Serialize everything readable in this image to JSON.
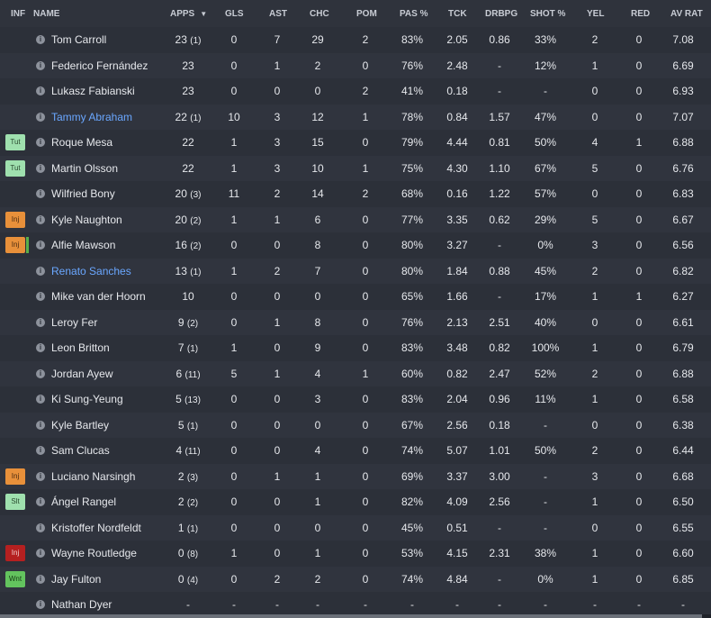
{
  "headers": {
    "inf": "INF",
    "name": "NAME",
    "apps": "APPS",
    "gls": "GLS",
    "ast": "AST",
    "chc": "CHC",
    "pom": "POM",
    "pas": "PAS %",
    "tck": "TCK",
    "drb": "DRBPG",
    "shot": "SHOT %",
    "yel": "YEL",
    "red": "RED",
    "av": "AV RAT"
  },
  "sort_arrow": "▼",
  "info_glyph": "i",
  "colors": {
    "loan_name": "#6aa7ff",
    "tut": "#9fe0ae",
    "inj": "#e8903a",
    "inj_severe": "#b52020",
    "wnt": "#63c35e"
  },
  "players": [
    {
      "inf": "",
      "inf_type": "",
      "name": "Tom Carroll",
      "loan": false,
      "apps": "23",
      "apps_sub": "(1)",
      "gls": "0",
      "ast": "7",
      "chc": "29",
      "pom": "2",
      "pas": "83%",
      "tck": "2.05",
      "drb": "0.86",
      "shot": "33%",
      "yel": "2",
      "red": "0",
      "av": "7.08"
    },
    {
      "inf": "",
      "inf_type": "",
      "name": "Federico Fernández",
      "loan": false,
      "apps": "23",
      "apps_sub": "",
      "gls": "0",
      "ast": "1",
      "chc": "2",
      "pom": "0",
      "pas": "76%",
      "tck": "2.48",
      "drb": "-",
      "shot": "12%",
      "yel": "1",
      "red": "0",
      "av": "6.69"
    },
    {
      "inf": "",
      "inf_type": "",
      "name": "Lukasz Fabianski",
      "loan": false,
      "apps": "23",
      "apps_sub": "",
      "gls": "0",
      "ast": "0",
      "chc": "0",
      "pom": "2",
      "pas": "41%",
      "tck": "0.18",
      "drb": "-",
      "shot": "-",
      "yel": "0",
      "red": "0",
      "av": "6.93"
    },
    {
      "inf": "",
      "inf_type": "",
      "name": "Tammy Abraham",
      "loan": true,
      "apps": "22",
      "apps_sub": "(1)",
      "gls": "10",
      "ast": "3",
      "chc": "12",
      "pom": "1",
      "pas": "78%",
      "tck": "0.84",
      "drb": "1.57",
      "shot": "47%",
      "yel": "0",
      "red": "0",
      "av": "7.07"
    },
    {
      "inf": "Tut",
      "inf_type": "tut",
      "name": "Roque Mesa",
      "loan": false,
      "apps": "22",
      "apps_sub": "",
      "gls": "1",
      "ast": "3",
      "chc": "15",
      "pom": "0",
      "pas": "79%",
      "tck": "4.44",
      "drb": "0.81",
      "shot": "50%",
      "yel": "4",
      "red": "1",
      "av": "6.88"
    },
    {
      "inf": "Tut",
      "inf_type": "tut",
      "name": "Martin Olsson",
      "loan": false,
      "apps": "22",
      "apps_sub": "",
      "gls": "1",
      "ast": "3",
      "chc": "10",
      "pom": "1",
      "pas": "75%",
      "tck": "4.30",
      "drb": "1.10",
      "shot": "67%",
      "yel": "5",
      "red": "0",
      "av": "6.76"
    },
    {
      "inf": "",
      "inf_type": "",
      "name": "Wilfried Bony",
      "loan": false,
      "apps": "20",
      "apps_sub": "(3)",
      "gls": "11",
      "ast": "2",
      "chc": "14",
      "pom": "2",
      "pas": "68%",
      "tck": "0.16",
      "drb": "1.22",
      "shot": "57%",
      "yel": "0",
      "red": "0",
      "av": "6.83"
    },
    {
      "inf": "Inj",
      "inf_type": "inj",
      "name": "Kyle Naughton",
      "loan": false,
      "apps": "20",
      "apps_sub": "(2)",
      "gls": "1",
      "ast": "1",
      "chc": "6",
      "pom": "0",
      "pas": "77%",
      "tck": "3.35",
      "drb": "0.62",
      "shot": "29%",
      "yel": "5",
      "red": "0",
      "av": "6.67"
    },
    {
      "inf": "Inj",
      "inf_type": "inj2",
      "name": "Alfie Mawson",
      "loan": false,
      "apps": "16",
      "apps_sub": "(2)",
      "gls": "0",
      "ast": "0",
      "chc": "8",
      "pom": "0",
      "pas": "80%",
      "tck": "3.27",
      "drb": "-",
      "shot": "0%",
      "yel": "3",
      "red": "0",
      "av": "6.56"
    },
    {
      "inf": "",
      "inf_type": "",
      "name": "Renato Sanches",
      "loan": true,
      "apps": "13",
      "apps_sub": "(1)",
      "gls": "1",
      "ast": "2",
      "chc": "7",
      "pom": "0",
      "pas": "80%",
      "tck": "1.84",
      "drb": "0.88",
      "shot": "45%",
      "yel": "2",
      "red": "0",
      "av": "6.82"
    },
    {
      "inf": "",
      "inf_type": "",
      "name": "Mike van der Hoorn",
      "loan": false,
      "apps": "10",
      "apps_sub": "",
      "gls": "0",
      "ast": "0",
      "chc": "0",
      "pom": "0",
      "pas": "65%",
      "tck": "1.66",
      "drb": "-",
      "shot": "17%",
      "yel": "1",
      "red": "1",
      "av": "6.27"
    },
    {
      "inf": "",
      "inf_type": "",
      "name": "Leroy Fer",
      "loan": false,
      "apps": "9",
      "apps_sub": "(2)",
      "gls": "0",
      "ast": "1",
      "chc": "8",
      "pom": "0",
      "pas": "76%",
      "tck": "2.13",
      "drb": "2.51",
      "shot": "40%",
      "yel": "0",
      "red": "0",
      "av": "6.61"
    },
    {
      "inf": "",
      "inf_type": "",
      "name": "Leon Britton",
      "loan": false,
      "apps": "7",
      "apps_sub": "(1)",
      "gls": "1",
      "ast": "0",
      "chc": "9",
      "pom": "0",
      "pas": "83%",
      "tck": "3.48",
      "drb": "0.82",
      "shot": "100%",
      "yel": "1",
      "red": "0",
      "av": "6.79"
    },
    {
      "inf": "",
      "inf_type": "",
      "name": "Jordan Ayew",
      "loan": false,
      "apps": "6",
      "apps_sub": "(11)",
      "gls": "5",
      "ast": "1",
      "chc": "4",
      "pom": "1",
      "pas": "60%",
      "tck": "0.82",
      "drb": "2.47",
      "shot": "52%",
      "yel": "2",
      "red": "0",
      "av": "6.88"
    },
    {
      "inf": "",
      "inf_type": "",
      "name": "Ki Sung-Yeung",
      "loan": false,
      "apps": "5",
      "apps_sub": "(13)",
      "gls": "0",
      "ast": "0",
      "chc": "3",
      "pom": "0",
      "pas": "83%",
      "tck": "2.04",
      "drb": "0.96",
      "shot": "11%",
      "yel": "1",
      "red": "0",
      "av": "6.58"
    },
    {
      "inf": "",
      "inf_type": "",
      "name": "Kyle Bartley",
      "loan": false,
      "apps": "5",
      "apps_sub": "(1)",
      "gls": "0",
      "ast": "0",
      "chc": "0",
      "pom": "0",
      "pas": "67%",
      "tck": "2.56",
      "drb": "0.18",
      "shot": "-",
      "yel": "0",
      "red": "0",
      "av": "6.38"
    },
    {
      "inf": "",
      "inf_type": "",
      "name": "Sam Clucas",
      "loan": false,
      "apps": "4",
      "apps_sub": "(11)",
      "gls": "0",
      "ast": "0",
      "chc": "4",
      "pom": "0",
      "pas": "74%",
      "tck": "5.07",
      "drb": "1.01",
      "shot": "50%",
      "yel": "2",
      "red": "0",
      "av": "6.44"
    },
    {
      "inf": "Inj",
      "inf_type": "inj",
      "name": "Luciano Narsingh",
      "loan": false,
      "apps": "2",
      "apps_sub": "(3)",
      "gls": "0",
      "ast": "1",
      "chc": "1",
      "pom": "0",
      "pas": "69%",
      "tck": "3.37",
      "drb": "3.00",
      "shot": "-",
      "yel": "3",
      "red": "0",
      "av": "6.68"
    },
    {
      "inf": "Slt",
      "inf_type": "slt",
      "name": "Ángel Rangel",
      "loan": false,
      "apps": "2",
      "apps_sub": "(2)",
      "gls": "0",
      "ast": "0",
      "chc": "1",
      "pom": "0",
      "pas": "82%",
      "tck": "4.09",
      "drb": "2.56",
      "shot": "-",
      "yel": "1",
      "red": "0",
      "av": "6.50"
    },
    {
      "inf": "",
      "inf_type": "",
      "name": "Kristoffer Nordfeldt",
      "loan": false,
      "apps": "1",
      "apps_sub": "(1)",
      "gls": "0",
      "ast": "0",
      "chc": "0",
      "pom": "0",
      "pas": "45%",
      "tck": "0.51",
      "drb": "-",
      "shot": "-",
      "yel": "0",
      "red": "0",
      "av": "6.55"
    },
    {
      "inf": "Inj",
      "inf_type": "injr",
      "name": "Wayne Routledge",
      "loan": false,
      "apps": "0",
      "apps_sub": "(8)",
      "gls": "1",
      "ast": "0",
      "chc": "1",
      "pom": "0",
      "pas": "53%",
      "tck": "4.15",
      "drb": "2.31",
      "shot": "38%",
      "yel": "1",
      "red": "0",
      "av": "6.60"
    },
    {
      "inf": "Wnt",
      "inf_type": "wnt",
      "name": "Jay Fulton",
      "loan": false,
      "apps": "0",
      "apps_sub": "(4)",
      "gls": "0",
      "ast": "2",
      "chc": "2",
      "pom": "0",
      "pas": "74%",
      "tck": "4.84",
      "drb": "-",
      "shot": "0%",
      "yel": "1",
      "red": "0",
      "av": "6.85"
    },
    {
      "inf": "",
      "inf_type": "",
      "name": "Nathan Dyer",
      "loan": false,
      "apps": "-",
      "apps_sub": "",
      "gls": "-",
      "ast": "-",
      "chc": "-",
      "pom": "-",
      "pas": "-",
      "tck": "-",
      "drb": "-",
      "shot": "-",
      "yel": "-",
      "red": "-",
      "av": "-"
    }
  ]
}
